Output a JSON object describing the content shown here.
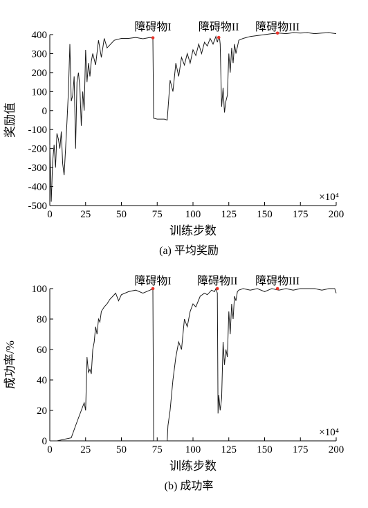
{
  "chart_data": [
    {
      "type": "line",
      "title": "",
      "caption": "(a) 平均奖励",
      "xlabel": "训练步数",
      "ylabel": "奖励值",
      "x_multiplier": "×10⁴",
      "xlim": [
        0,
        200
      ],
      "ylim": [
        -500,
        400
      ],
      "xticks": [
        0,
        25,
        50,
        75,
        100,
        125,
        150,
        175,
        200
      ],
      "yticks": [
        -500,
        -400,
        -300,
        -200,
        -100,
        0,
        100,
        200,
        300,
        400
      ],
      "grid": false,
      "annotations": [
        {
          "text": "障碍物I",
          "x": 72,
          "y": 383
        },
        {
          "text": "障碍物II",
          "x": 118,
          "y": 385
        },
        {
          "text": "障碍物III",
          "x": 159,
          "y": 408
        }
      ],
      "series": [
        {
          "x": [
            0,
            1,
            2,
            3,
            4,
            5,
            6,
            7,
            8,
            9,
            10,
            11,
            12,
            13,
            14,
            15,
            16,
            17,
            18,
            19,
            20,
            21,
            22,
            23,
            24,
            25,
            26,
            27,
            28,
            29,
            30,
            32,
            34,
            36,
            38,
            40,
            45,
            50,
            55,
            60,
            65,
            70,
            72,
            72.5,
            75,
            80,
            82,
            84,
            86,
            88,
            90,
            92,
            94,
            96,
            98,
            100,
            102,
            104,
            106,
            108,
            110,
            112,
            114,
            116,
            117,
            118,
            118.5,
            119,
            120,
            121,
            122,
            123,
            124,
            125,
            126,
            127,
            128,
            129,
            130,
            132,
            135,
            140,
            145,
            150,
            155,
            160,
            165,
            170,
            175,
            180,
            185,
            190,
            195,
            200
          ],
          "y": [
            -180,
            -480,
            -270,
            -180,
            -300,
            -120,
            -150,
            -200,
            -110,
            -280,
            -340,
            -200,
            -60,
            100,
            350,
            50,
            80,
            180,
            -200,
            150,
            200,
            120,
            -80,
            100,
            0,
            320,
            150,
            250,
            180,
            260,
            300,
            240,
            370,
            280,
            380,
            330,
            370,
            380,
            380,
            385,
            378,
            385,
            383,
            -40,
            -45,
            -45,
            -50,
            160,
            100,
            250,
            180,
            280,
            240,
            300,
            250,
            320,
            290,
            350,
            300,
            360,
            340,
            380,
            350,
            390,
            360,
            390,
            385,
            350,
            20,
            120,
            -10,
            50,
            80,
            300,
            200,
            330,
            250,
            350,
            300,
            370,
            380,
            390,
            395,
            400,
            405,
            408,
            405,
            410,
            408,
            410,
            405,
            408,
            410,
            405
          ]
        }
      ]
    },
    {
      "type": "line",
      "title": "",
      "caption": "(b) 成功率",
      "xlabel": "训练步数",
      "ylabel": "成功率/%",
      "x_multiplier": "×10⁴",
      "xlim": [
        0,
        200
      ],
      "ylim": [
        0,
        100
      ],
      "xticks": [
        0,
        25,
        50,
        75,
        100,
        125,
        150,
        175,
        200
      ],
      "yticks": [
        0,
        20,
        40,
        60,
        80,
        100
      ],
      "grid": false,
      "annotations": [
        {
          "text": "障碍物I",
          "x": 72,
          "y": 100
        },
        {
          "text": "障碍物II",
          "x": 117,
          "y": 100
        },
        {
          "text": "障碍物III",
          "x": 159,
          "y": 100
        }
      ],
      "series": [
        {
          "x": [
            0,
            5,
            10,
            15,
            18,
            20,
            22,
            24,
            25,
            26,
            27,
            28,
            29,
            30,
            31,
            32,
            33,
            34,
            35,
            36,
            38,
            40,
            42,
            44,
            46,
            48,
            50,
            55,
            60,
            65,
            70,
            72,
            72.5,
            80,
            82,
            82.5,
            84,
            86,
            88,
            90,
            92,
            94,
            96,
            98,
            100,
            102,
            105,
            108,
            110,
            113,
            115,
            116,
            117,
            117.5,
            118,
            119,
            120,
            121,
            122,
            123,
            124,
            125,
            126,
            127,
            128,
            129,
            130,
            131,
            132,
            135,
            140,
            145,
            150,
            155,
            160,
            165,
            170,
            175,
            180,
            185,
            190,
            195,
            199,
            200
          ],
          "y": [
            0,
            0,
            1,
            2,
            10,
            15,
            20,
            25,
            20,
            55,
            45,
            47,
            44,
            60,
            65,
            75,
            70,
            80,
            78,
            85,
            88,
            90,
            93,
            95,
            97,
            92,
            96,
            98,
            99,
            97,
            99,
            100,
            0,
            0,
            0,
            10,
            20,
            40,
            55,
            65,
            60,
            80,
            75,
            85,
            90,
            88,
            95,
            97,
            96,
            99,
            98,
            100,
            97,
            18,
            30,
            20,
            28,
            65,
            50,
            60,
            55,
            85,
            70,
            90,
            80,
            95,
            92,
            98,
            99,
            100,
            99,
            100,
            98,
            100,
            99,
            100,
            99,
            100,
            100,
            100,
            99,
            100,
            100,
            97
          ]
        }
      ]
    }
  ]
}
